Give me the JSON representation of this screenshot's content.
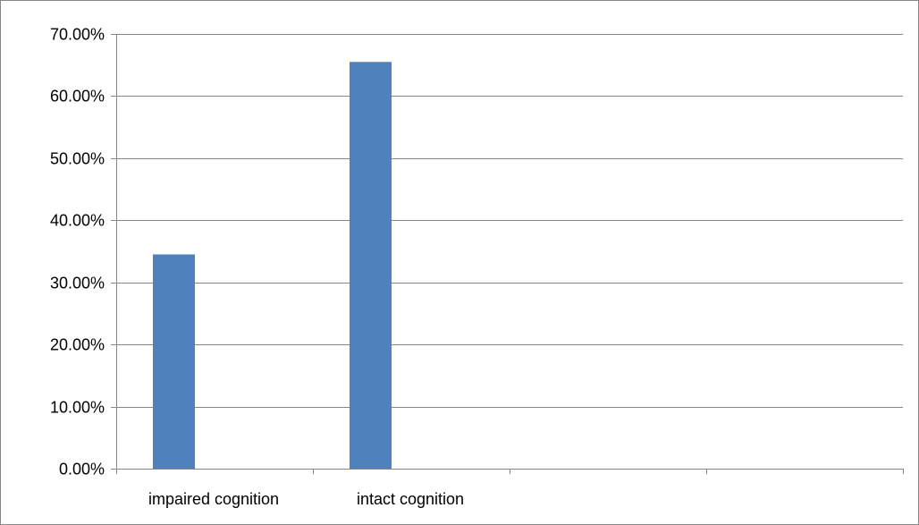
{
  "chart_data": {
    "type": "bar",
    "categories": [
      "impaired cognition",
      "intact cognition",
      "",
      ""
    ],
    "values": [
      34.5,
      65.5,
      null,
      null
    ],
    "value_format": "percent",
    "ylim": [
      0,
      70
    ],
    "yticks": [
      "0.00%",
      "10.00%",
      "20.00%",
      "30.00%",
      "40.00%",
      "50.00%",
      "60.00%",
      "70.00%"
    ],
    "grid": true,
    "legend": "none",
    "title": "",
    "xlabel": "",
    "ylabel": "",
    "colors": {
      "bar": "#4f81bd",
      "grid": "#868686",
      "axis": "#868686"
    }
  }
}
